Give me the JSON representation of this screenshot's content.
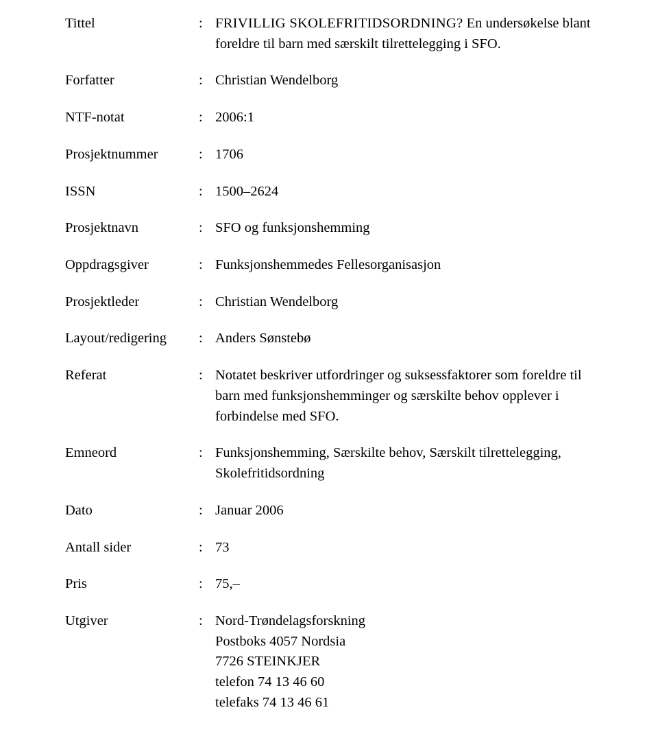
{
  "rows": [
    {
      "label": "Tittel",
      "value_sc": "FRIVILLIG SKOLEFRITIDSORDNING?",
      "value_rest": "En undersøkelse blant foreldre til barn med særskilt tilrettelegging i SFO."
    },
    {
      "label": "Forfatter",
      "value": "Christian Wendelborg"
    },
    {
      "label": "NTF-notat",
      "value": "2006:1"
    },
    {
      "label": "Prosjektnummer",
      "value": "1706"
    },
    {
      "label": "ISSN",
      "value": "1500–2624"
    },
    {
      "label": "Prosjektnavn",
      "value": "SFO og funksjonshemming"
    },
    {
      "label": "Oppdragsgiver",
      "value": "Funksjonshemmedes Fellesorganisasjon"
    },
    {
      "label": "Prosjektleder",
      "value": "Christian Wendelborg"
    },
    {
      "label": "Layout/redigering",
      "value": "Anders Sønstebø"
    },
    {
      "label": "Referat",
      "value": "Notatet beskriver utfordringer og suksessfaktorer som foreldre til barn med funksjonshemminger og særskilte behov opplever i forbindelse med SFO."
    },
    {
      "label": "Emneord",
      "value": "Funksjonshemming, Særskilte behov, Særskilt tilrettelegging, Skolefritidsordning"
    },
    {
      "label": "Dato",
      "value": "Januar 2006"
    },
    {
      "label": "Antall sider",
      "value": "73"
    },
    {
      "label": "Pris",
      "value": "75,–"
    },
    {
      "label": "Utgiver",
      "lines": [
        "Nord-Trøndelagsforskning",
        "Postboks 4057 Nordsia",
        "7726 STEINKJER",
        "telefon 74 13 46 60",
        "telefaks 74 13 46 61"
      ]
    }
  ],
  "colon": ":"
}
